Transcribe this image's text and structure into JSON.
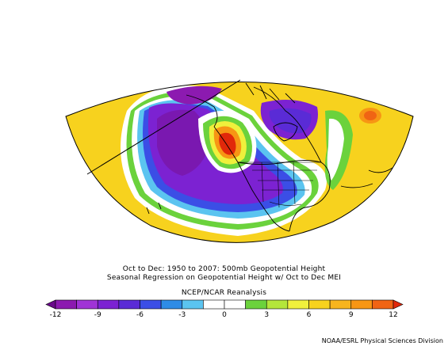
{
  "title": {
    "line1": "Oct to Dec: 1950 to 2007: 500mb Geopotential Height",
    "line2": "Seasonal Regression on Geopotential Height  w/ Oct to Dec MEI"
  },
  "reanalysis_label": "NCEP/NCAR Reanalysis",
  "credit": "NOAA/ESRL Physical Sciences Division",
  "colorbar": {
    "tick_labels": [
      "-12",
      "-9",
      "-6",
      "-3",
      "0",
      "3",
      "6",
      "9",
      "12"
    ],
    "colors": [
      "#6a0a8a",
      "#8c1ab0",
      "#a033d6",
      "#7c22d2",
      "#5a2bd6",
      "#3b4ee6",
      "#2e8ce6",
      "#5bc4f0",
      "#ffffff",
      "#ffffff",
      "#6bd23c",
      "#b4e63a",
      "#f0f03c",
      "#f7d21e",
      "#f7b41e",
      "#f79614",
      "#f06414",
      "#e1280a"
    ]
  },
  "map_colors": {
    "background": "#f7d21e",
    "deep_purple": "#7a18b0",
    "purple": "#8c1ab0",
    "blue_violet": "#5a2bd6",
    "blue": "#3b4ee6",
    "light_blue": "#5bc4f0",
    "white": "#ffffff",
    "light_green": "#6bd23c",
    "yellow_green": "#b4e63a",
    "yellow": "#f0f03c",
    "orange": "#f79614",
    "red_orange": "#f06414",
    "red": "#e1280a",
    "coast": "#000000"
  }
}
